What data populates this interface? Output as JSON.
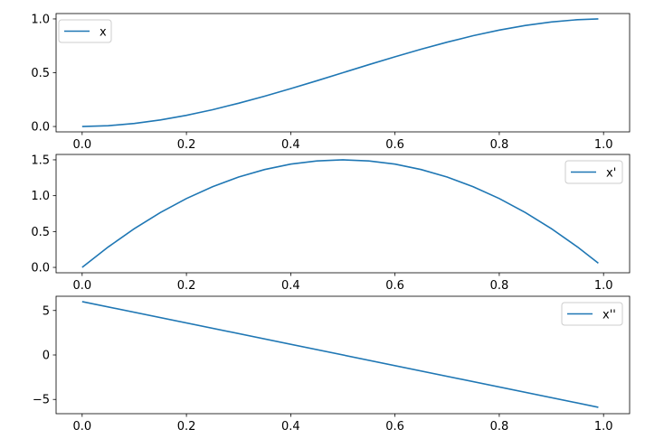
{
  "colors": {
    "line": "#1f77b4",
    "axes": "#000000",
    "legend_border": "#cccccc",
    "background": "#ffffff"
  },
  "chart_data": [
    {
      "type": "line",
      "title": "",
      "xlabel": "",
      "ylabel": "",
      "xlim": [
        -0.05,
        1.05
      ],
      "ylim": [
        -0.05,
        1.05
      ],
      "xticks": [
        0.0,
        0.2,
        0.4,
        0.6,
        0.8,
        1.0
      ],
      "xtick_labels": [
        "0.0",
        "0.2",
        "0.4",
        "0.6",
        "0.8",
        "1.0"
      ],
      "yticks": [
        0.0,
        0.5,
        1.0
      ],
      "ytick_labels": [
        "0.0",
        "0.5",
        "1.0"
      ],
      "legend": "upper left",
      "grid": false,
      "series": [
        {
          "name": "x",
          "x": [
            0.0,
            0.05,
            0.1,
            0.15,
            0.2,
            0.25,
            0.3,
            0.35,
            0.4,
            0.45,
            0.5,
            0.55,
            0.6,
            0.65,
            0.7,
            0.75,
            0.8,
            0.85,
            0.9,
            0.95,
            0.99
          ],
          "y": [
            0.0,
            0.007,
            0.028,
            0.061,
            0.104,
            0.156,
            0.216,
            0.282,
            0.352,
            0.425,
            0.5,
            0.575,
            0.648,
            0.718,
            0.784,
            0.844,
            0.896,
            0.939,
            0.972,
            0.993,
            1.0
          ]
        }
      ]
    },
    {
      "type": "line",
      "title": "",
      "xlabel": "",
      "ylabel": "",
      "xlim": [
        -0.05,
        1.05
      ],
      "ylim": [
        -0.075,
        1.575
      ],
      "xticks": [
        0.0,
        0.2,
        0.4,
        0.6,
        0.8,
        1.0
      ],
      "xtick_labels": [
        "0.0",
        "0.2",
        "0.4",
        "0.6",
        "0.8",
        "1.0"
      ],
      "yticks": [
        0.0,
        0.5,
        1.0,
        1.5
      ],
      "ytick_labels": [
        "0.0",
        "0.5",
        "1.0",
        "1.5"
      ],
      "legend": "upper right",
      "grid": false,
      "series": [
        {
          "name": "x'",
          "x": [
            0.0,
            0.05,
            0.1,
            0.15,
            0.2,
            0.25,
            0.3,
            0.35,
            0.4,
            0.45,
            0.5,
            0.55,
            0.6,
            0.65,
            0.7,
            0.75,
            0.8,
            0.85,
            0.9,
            0.95,
            0.99
          ],
          "y": [
            0.0,
            0.285,
            0.54,
            0.765,
            0.96,
            1.125,
            1.26,
            1.365,
            1.44,
            1.485,
            1.5,
            1.485,
            1.44,
            1.365,
            1.26,
            1.125,
            0.96,
            0.765,
            0.54,
            0.285,
            0.059
          ]
        }
      ]
    },
    {
      "type": "line",
      "title": "",
      "xlabel": "",
      "ylabel": "",
      "xlim": [
        -0.05,
        1.05
      ],
      "ylim": [
        -6.6,
        6.6
      ],
      "xticks": [
        0.0,
        0.2,
        0.4,
        0.6,
        0.8,
        1.0
      ],
      "xtick_labels": [
        "0.0",
        "0.2",
        "0.4",
        "0.6",
        "0.8",
        "1.0"
      ],
      "yticks": [
        -5,
        0,
        5
      ],
      "ytick_labels": [
        "−5",
        "0",
        "5"
      ],
      "legend": "upper right",
      "grid": false,
      "series": [
        {
          "name": "x''",
          "x": [
            0.0,
            0.99
          ],
          "y": [
            6.0,
            -5.88
          ]
        }
      ]
    }
  ]
}
